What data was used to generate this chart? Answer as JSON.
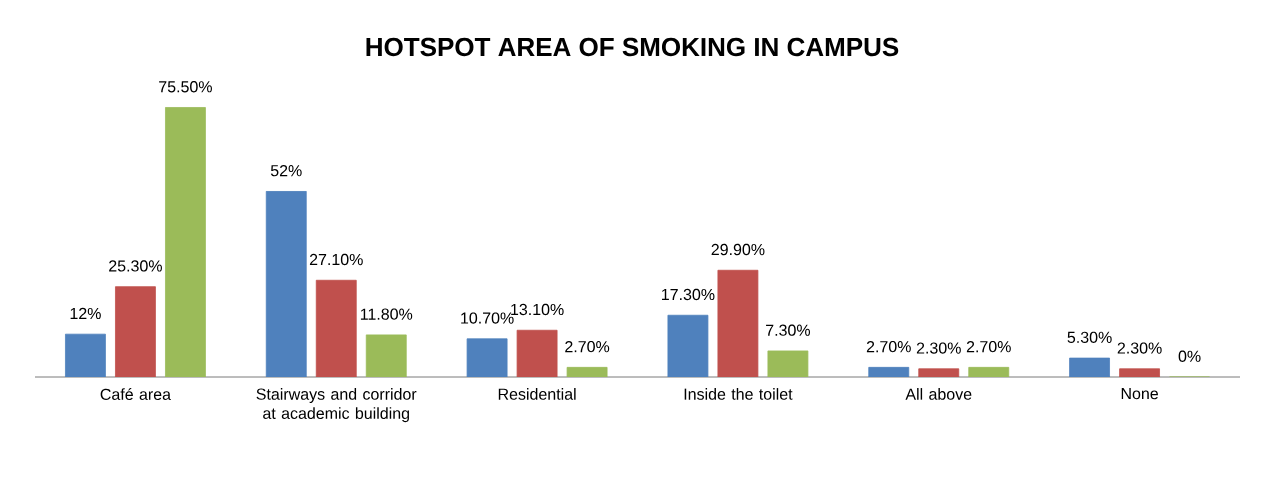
{
  "chart_data": {
    "type": "bar",
    "title": "HOTSPOT AREA OF SMOKING IN CAMPUS",
    "categories": [
      "Café area",
      "Stairways and corridor at academic building",
      "Residential",
      "Inside the toilet",
      "All above",
      "None"
    ],
    "series": [
      {
        "color": "#4f81bd",
        "values": [
          12,
          52,
          10.7,
          17.3,
          2.7,
          5.3
        ],
        "value_labels": [
          "12%",
          "52%",
          "10.70%",
          "17.30%",
          "2.70%",
          "5.30%"
        ]
      },
      {
        "color": "#c0504d",
        "values": [
          25.3,
          27.1,
          13.1,
          29.9,
          2.3,
          2.3
        ],
        "value_labels": [
          "25.30%",
          "27.10%",
          "13.10%",
          "29.90%",
          "2.30%",
          "2.30%"
        ]
      },
      {
        "color": "#9bbb59",
        "values": [
          75.5,
          11.8,
          2.7,
          7.3,
          2.7,
          0
        ],
        "value_labels": [
          "75.50%",
          "11.80%",
          "2.70%",
          "7.30%",
          "2.70%",
          "0%"
        ]
      }
    ]
  }
}
